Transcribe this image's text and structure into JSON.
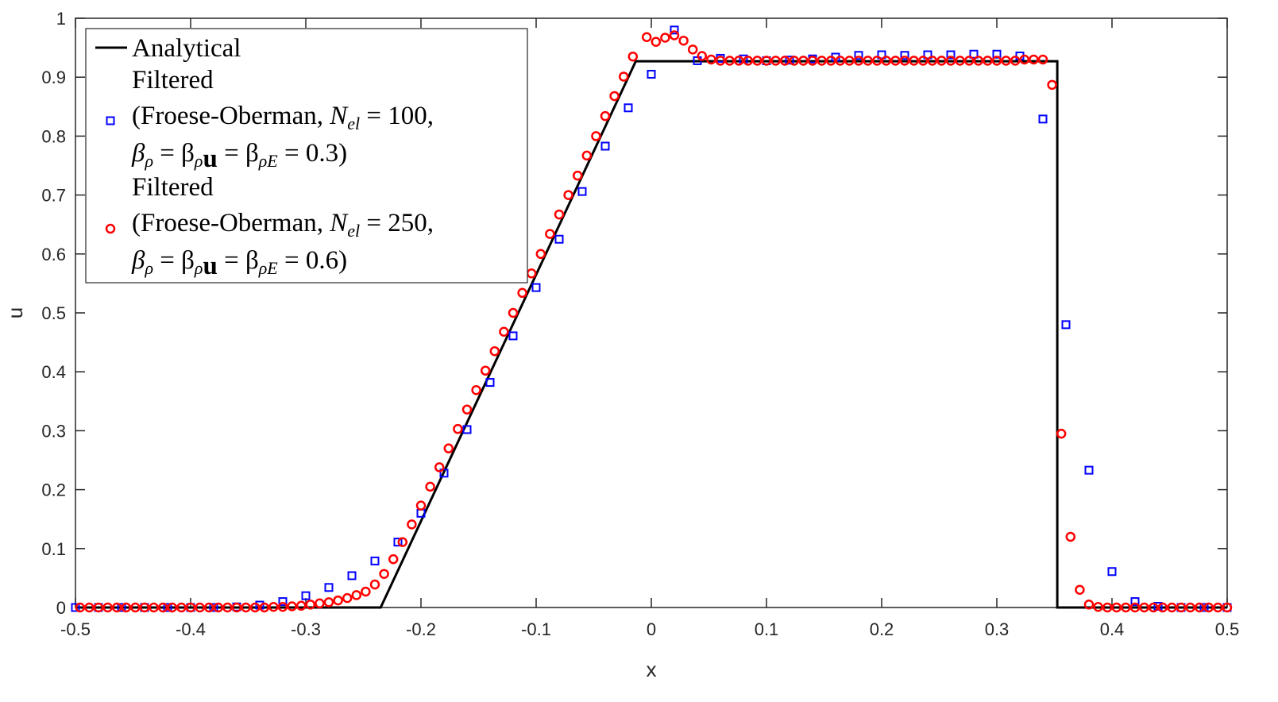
{
  "chart_data": {
    "type": "scatter",
    "xlabel": "x",
    "ylabel": "u",
    "xlim": [
      -0.5,
      0.5
    ],
    "ylim": [
      0,
      1
    ],
    "x_ticks": [
      "-0.5",
      "-0.4",
      "-0.3",
      "-0.2",
      "-0.1",
      "0",
      "0.1",
      "0.2",
      "0.3",
      "0.4",
      "0.5"
    ],
    "y_ticks": [
      "0",
      "0.1",
      "0.2",
      "0.3",
      "0.4",
      "0.5",
      "0.6",
      "0.7",
      "0.8",
      "0.9",
      "1"
    ],
    "grid": false,
    "legend_position": "top-left",
    "series": [
      {
        "name": "Analytical",
        "kind": "line",
        "color": "#000000",
        "x": [
          -0.5,
          -0.235,
          -0.0135,
          0.3525,
          0.3525,
          0.5
        ],
        "y": [
          0,
          0,
          0.927,
          0.927,
          0,
          0
        ]
      },
      {
        "name": "Filtered (Froese-Oberman, N_el = 100, β_ρ = β_ρu = β_ρE = 0.3)",
        "legend_lines": [
          "Filtered",
          "(Froese-Oberman, ",
          "β",
          "ρ",
          " = β",
          "ρ",
          "u",
          " = β",
          "ρE",
          " = 0.3)",
          "N",
          "el",
          " = 100,"
        ],
        "kind": "marker-square",
        "color": "#0000ff",
        "x": [
          -0.5,
          -0.48,
          -0.46,
          -0.44,
          -0.42,
          -0.4,
          -0.38,
          -0.36,
          -0.34,
          -0.32,
          -0.3,
          -0.28,
          -0.26,
          -0.24,
          -0.22,
          -0.2,
          -0.18,
          -0.16,
          -0.14,
          -0.12,
          -0.1,
          -0.08,
          -0.06,
          -0.04,
          -0.02,
          0.0,
          0.02,
          0.04,
          0.06,
          0.08,
          0.1,
          0.12,
          0.14,
          0.16,
          0.18,
          0.2,
          0.22,
          0.24,
          0.26,
          0.28,
          0.3,
          0.32,
          0.34,
          0.36,
          0.38,
          0.4,
          0.42,
          0.44,
          0.46,
          0.48,
          0.5
        ],
        "y": [
          0,
          0,
          0,
          0,
          0,
          0,
          0,
          0.001,
          0.004,
          0.01,
          0.02,
          0.034,
          0.054,
          0.079,
          0.111,
          0.16,
          0.228,
          0.302,
          0.382,
          0.461,
          0.543,
          0.625,
          0.706,
          0.783,
          0.848,
          0.905,
          0.98,
          0.928,
          0.932,
          0.931,
          0.928,
          0.929,
          0.931,
          0.934,
          0.937,
          0.938,
          0.937,
          0.938,
          0.938,
          0.939,
          0.939,
          0.936,
          0.829,
          0.48,
          0.233,
          0.061,
          0.01,
          0.002,
          0,
          0,
          0
        ]
      },
      {
        "name": "Filtered (Froese-Oberman, N_el = 250, β_ρ = β_ρu = β_ρE = 0.6)",
        "legend_lines": [
          "Filtered",
          "(Froese-Oberman, ",
          "β",
          "ρ",
          " = β",
          "ρ",
          "u",
          " = β",
          "ρE",
          " = 0.6)",
          "N",
          "el",
          " = 250,"
        ],
        "kind": "marker-circle",
        "color": "#ff0000",
        "x": [
          -0.496,
          -0.488,
          -0.48,
          -0.472,
          -0.464,
          -0.456,
          -0.448,
          -0.44,
          -0.432,
          -0.424,
          -0.416,
          -0.408,
          -0.4,
          -0.392,
          -0.384,
          -0.376,
          -0.368,
          -0.36,
          -0.352,
          -0.344,
          -0.336,
          -0.328,
          -0.32,
          -0.312,
          -0.304,
          -0.296,
          -0.288,
          -0.28,
          -0.272,
          -0.264,
          -0.256,
          -0.248,
          -0.24,
          -0.232,
          -0.224,
          -0.216,
          -0.208,
          -0.2,
          -0.192,
          -0.184,
          -0.176,
          -0.168,
          -0.16,
          -0.152,
          -0.144,
          -0.136,
          -0.128,
          -0.12,
          -0.112,
          -0.104,
          -0.096,
          -0.088,
          -0.08,
          -0.072,
          -0.064,
          -0.056,
          -0.048,
          -0.04,
          -0.032,
          -0.024,
          -0.016,
          -0.004,
          0.004,
          0.012,
          0.02,
          0.028,
          0.036,
          0.044,
          0.052,
          0.06,
          0.068,
          0.076,
          0.084,
          0.092,
          0.1,
          0.108,
          0.116,
          0.124,
          0.132,
          0.14,
          0.148,
          0.156,
          0.164,
          0.172,
          0.18,
          0.188,
          0.196,
          0.204,
          0.212,
          0.22,
          0.228,
          0.236,
          0.244,
          0.252,
          0.26,
          0.268,
          0.276,
          0.284,
          0.292,
          0.3,
          0.308,
          0.316,
          0.324,
          0.332,
          0.34,
          0.348,
          0.356,
          0.364,
          0.372,
          0.38,
          0.388,
          0.396,
          0.404,
          0.412,
          0.42,
          0.428,
          0.436,
          0.444,
          0.452,
          0.46,
          0.468,
          0.476,
          0.484,
          0.492,
          0.5
        ],
        "y": [
          0,
          0,
          0,
          0,
          0,
          0,
          0,
          0,
          0,
          0,
          0,
          0,
          0,
          0,
          0,
          0,
          0,
          0,
          0,
          0,
          0,
          0.001,
          0.001,
          0.002,
          0.003,
          0.005,
          0.007,
          0.009,
          0.012,
          0.016,
          0.021,
          0.027,
          0.039,
          0.057,
          0.082,
          0.111,
          0.141,
          0.173,
          0.205,
          0.238,
          0.27,
          0.303,
          0.336,
          0.369,
          0.402,
          0.435,
          0.468,
          0.5,
          0.534,
          0.567,
          0.6,
          0.634,
          0.667,
          0.7,
          0.733,
          0.767,
          0.8,
          0.834,
          0.868,
          0.901,
          0.935,
          0.968,
          0.96,
          0.967,
          0.971,
          0.962,
          0.947,
          0.936,
          0.93,
          0.928,
          0.928,
          0.928,
          0.928,
          0.928,
          0.928,
          0.928,
          0.928,
          0.928,
          0.928,
          0.928,
          0.928,
          0.928,
          0.928,
          0.928,
          0.928,
          0.928,
          0.928,
          0.928,
          0.928,
          0.928,
          0.928,
          0.928,
          0.928,
          0.928,
          0.928,
          0.928,
          0.928,
          0.928,
          0.928,
          0.928,
          0.928,
          0.928,
          0.93,
          0.93,
          0.93,
          0.887,
          0.295,
          0.12,
          0.03,
          0.005,
          0.001,
          0,
          0,
          0,
          0,
          0,
          0,
          0,
          0,
          0,
          0,
          0,
          0,
          0,
          0
        ]
      }
    ]
  }
}
